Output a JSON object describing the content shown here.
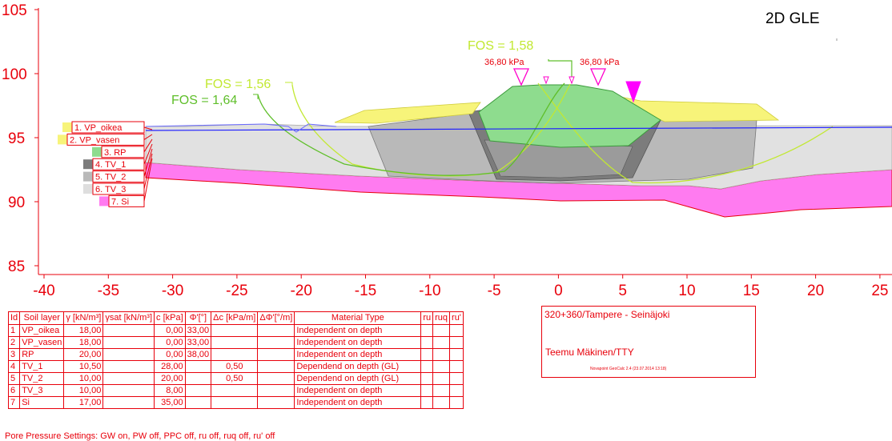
{
  "title": "2D GLE",
  "axes": {
    "y_ticks": [
      "105",
      "100",
      "95",
      "90",
      "85"
    ],
    "x_ticks": [
      "-40",
      "-35",
      "-30",
      "-25",
      "-20",
      "-15",
      "-10",
      "-5",
      "0",
      "5",
      "10",
      "15",
      "20",
      "25"
    ]
  },
  "fos_labels": [
    "FOS = 1,58",
    "FOS = 1,56",
    "FOS = 1,64"
  ],
  "loads": [
    "36,80 kPa",
    "36,80 kPa"
  ],
  "legend": [
    {
      "label": "1. VP_oikea",
      "color": "#f7f47a"
    },
    {
      "label": "2. VP_vasen",
      "color": "#f7f47a"
    },
    {
      "label": "3. RP",
      "color": "#8edc8e"
    },
    {
      "label": "4. TV_1",
      "color": "#7c7c7c"
    },
    {
      "label": "5. TV_2",
      "color": "#b9b9b9"
    },
    {
      "label": "6. TV_3",
      "color": "#dedede"
    },
    {
      "label": "7. Si",
      "color": "#ff7bf0"
    }
  ],
  "table": {
    "headers": [
      "Id",
      "Soil layer",
      "γ [kN/m³]",
      "γsat [kN/m³]",
      "c [kPa]",
      "Φ'[°]",
      "Δc [kPa/m]",
      "ΔΦ'[°/m]",
      "Material Type",
      "ru",
      "ruq",
      "ru'"
    ],
    "rows": [
      [
        "1",
        "VP_oikea",
        "18,00",
        "",
        "0,00",
        "33,00",
        "",
        "",
        "Independent on depth",
        "",
        "",
        ""
      ],
      [
        "2",
        "VP_vasen",
        "18,00",
        "",
        "0,00",
        "33,00",
        "",
        "",
        "Independent on depth",
        "",
        "",
        ""
      ],
      [
        "3",
        "RP",
        "20,00",
        "",
        "0,00",
        "38,00",
        "",
        "",
        "Independent on depth",
        "",
        "",
        ""
      ],
      [
        "4",
        "TV_1",
        "10,50",
        "",
        "28,00",
        "",
        "0,50",
        "",
        "Dependend on depth (GL)",
        "",
        "",
        ""
      ],
      [
        "5",
        "TV_2",
        "10,00",
        "",
        "20,00",
        "",
        "0,50",
        "",
        "Dependend on depth (GL)",
        "",
        "",
        ""
      ],
      [
        "6",
        "TV_3",
        "10,00",
        "",
        "8,00",
        "",
        "",
        "",
        "Independent on depth",
        "",
        "",
        ""
      ],
      [
        "7",
        "Si",
        "17,00",
        "",
        "35,00",
        "",
        "",
        "",
        "Independent on depth",
        "",
        "",
        ""
      ]
    ]
  },
  "info": {
    "project": "320+360/Tampere - Seinäjoki",
    "author": "Teemu Mäkinen/TTY",
    "software": "Novapoint GeoCalc 2.4  (23.07.2014 13:18)"
  },
  "pore_pressure": "Pore Pressure Settings: GW on, PW off, PPC off, ru off, ruq off, ru' off",
  "colors": {
    "axis": "#e8000b",
    "water_table": "#2020ff",
    "slip_green": "#5fbf2a",
    "slip_yellowgreen": "#c2e832",
    "embankment": "#8edc8e",
    "fill": "#f7f47a",
    "silt": "#ff7bf0"
  }
}
